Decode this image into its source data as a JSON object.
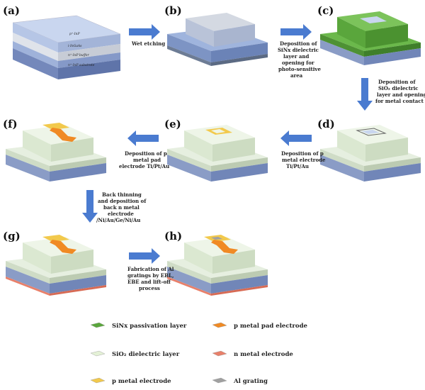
{
  "panels": {
    "a": "(a)",
    "b": "(b)",
    "c": "(c)",
    "d": "(d)",
    "e": "(e)",
    "f": "(f)",
    "g": "(g)",
    "h": "(h)"
  },
  "layers": {
    "cap": "p⁺-InP",
    "absorber": "i-InGaAs",
    "buffer": "n⁺-InP buffer",
    "substrate": "n⁺-InP substrate"
  },
  "steps": {
    "ab": [
      "Wet etching"
    ],
    "bc": [
      "Deposition of",
      "SiNx dielectric",
      "layer and",
      "opening for",
      "photo-sensitive",
      "area"
    ],
    "cd": [
      "Deposition of",
      "SiO₂ dielectric",
      "layer and opening",
      "for metal contact"
    ],
    "de": [
      "Deposition of p",
      "metal electrode",
      "Ti/Pt/Au"
    ],
    "ef": [
      "Deposition of p",
      "metal pad",
      "electrode Ti/Pt/Au"
    ],
    "fg": [
      "Back thinning",
      "and deposition of",
      "back n metal",
      "electrode",
      "/Ni/Au/Ge/Ni/Au"
    ],
    "gh": [
      "Fabrication of Al",
      "gratings by EBL,",
      "EBE and lift-off",
      "process"
    ]
  },
  "legend": [
    {
      "label": "SiNx passivation layer",
      "color": "#5aa63c"
    },
    {
      "label": "p metal pad electrode",
      "color": "#f08a24"
    },
    {
      "label": "SiO₂ dielectric layer",
      "color": "#e4f1d6"
    },
    {
      "label": "n metal electrode",
      "color": "#e8806a"
    },
    {
      "label": "p metal electrode",
      "color": "#f2c94c"
    },
    {
      "label": "Al grating",
      "color": "#a0a0a0"
    }
  ],
  "colors": {
    "arrow": "#4a7bd0",
    "substrate_top": "#9fb4dd",
    "substrate_side": "#6b83b7",
    "sio2": "#e4f1d6",
    "sinx": "#5aa63c"
  }
}
